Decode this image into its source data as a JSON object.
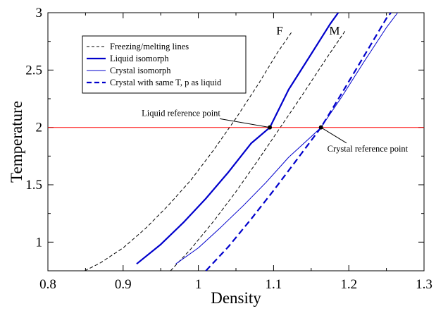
{
  "chart_data": {
    "type": "line",
    "xlabel": "Density",
    "ylabel": "Temperature",
    "xlim": [
      0.8,
      1.3
    ],
    "ylim": [
      0.75,
      3.0
    ],
    "xticks": [
      0.8,
      0.9,
      1.0,
      1.1,
      1.2,
      1.3
    ],
    "xtick_labels": [
      "0.8",
      "0.9",
      "1",
      "1.1",
      "1.2",
      "1.3"
    ],
    "yticks": [
      1.0,
      1.5,
      2.0,
      2.5,
      3.0
    ],
    "ytick_labels": [
      "1",
      "1.5",
      "2",
      "2.5",
      "3"
    ],
    "grid": false,
    "legend": "top-left",
    "series": [
      {
        "name": "Freezing/melting lines",
        "color": "#000000",
        "style": "dashed",
        "width": 1,
        "points": [
          [
            0.849,
            0.75
          ],
          [
            0.87,
            0.82
          ],
          [
            0.9,
            0.95
          ],
          [
            0.93,
            1.12
          ],
          [
            0.96,
            1.32
          ],
          [
            0.99,
            1.54
          ],
          [
            1.02,
            1.8
          ],
          [
            1.05,
            2.08
          ],
          [
            1.08,
            2.38
          ],
          [
            1.105,
            2.65
          ],
          [
            1.125,
            2.84
          ]
        ]
      },
      {
        "name": "",
        "color": "#000000",
        "style": "dashed",
        "width": 1,
        "points": [
          [
            0.963,
            0.75
          ],
          [
            0.99,
            0.94
          ],
          [
            1.02,
            1.18
          ],
          [
            1.05,
            1.44
          ],
          [
            1.08,
            1.72
          ],
          [
            1.11,
            2.01
          ],
          [
            1.14,
            2.3
          ],
          [
            1.17,
            2.6
          ],
          [
            1.195,
            2.84
          ]
        ]
      },
      {
        "name": "Liquid isomorph",
        "color": "#0000cc",
        "style": "solid",
        "width": 2.2,
        "points": [
          [
            0.918,
            0.81
          ],
          [
            0.95,
            0.98
          ],
          [
            0.98,
            1.17
          ],
          [
            1.01,
            1.38
          ],
          [
            1.04,
            1.61
          ],
          [
            1.07,
            1.86
          ],
          [
            1.095,
            2.0
          ],
          [
            1.12,
            2.33
          ],
          [
            1.15,
            2.64
          ],
          [
            1.175,
            2.9
          ],
          [
            1.186,
            3.0
          ]
        ]
      },
      {
        "name": "Crystal isomorph",
        "color": "#0000cc",
        "style": "solid",
        "width": 1,
        "points": [
          [
            0.97,
            0.81
          ],
          [
            1.0,
            0.95
          ],
          [
            1.03,
            1.13
          ],
          [
            1.06,
            1.32
          ],
          [
            1.09,
            1.52
          ],
          [
            1.12,
            1.74
          ],
          [
            1.15,
            1.92
          ],
          [
            1.163,
            2.0
          ],
          [
            1.19,
            2.26
          ],
          [
            1.22,
            2.57
          ],
          [
            1.25,
            2.87
          ],
          [
            1.265,
            3.0
          ]
        ]
      },
      {
        "name": "Crystal with same T, p as liquid",
        "color": "#0000cc",
        "style": "dashed",
        "width": 2.2,
        "points": [
          [
            1.01,
            0.75
          ],
          [
            1.04,
            0.96
          ],
          [
            1.07,
            1.2
          ],
          [
            1.1,
            1.45
          ],
          [
            1.13,
            1.71
          ],
          [
            1.163,
            2.0
          ],
          [
            1.19,
            2.29
          ],
          [
            1.22,
            2.62
          ],
          [
            1.25,
            2.95
          ],
          [
            1.256,
            3.0
          ]
        ]
      },
      {
        "name": "",
        "color": "#ff0000",
        "style": "solid",
        "width": 1,
        "points": [
          [
            0.8,
            2.0
          ],
          [
            1.3,
            2.0
          ]
        ]
      }
    ],
    "reference_points": [
      {
        "label": "Liquid reference point",
        "x": 1.095,
        "y": 2.0,
        "label_at": [
          0.977,
          2.1
        ]
      },
      {
        "label": "Crystal reference point",
        "x": 1.163,
        "y": 2.0,
        "label_at": [
          1.225,
          1.79
        ]
      }
    ],
    "curve_labels": [
      {
        "text": "F",
        "x": 1.108,
        "y": 2.81
      },
      {
        "text": "M",
        "x": 1.181,
        "y": 2.81
      }
    ]
  }
}
